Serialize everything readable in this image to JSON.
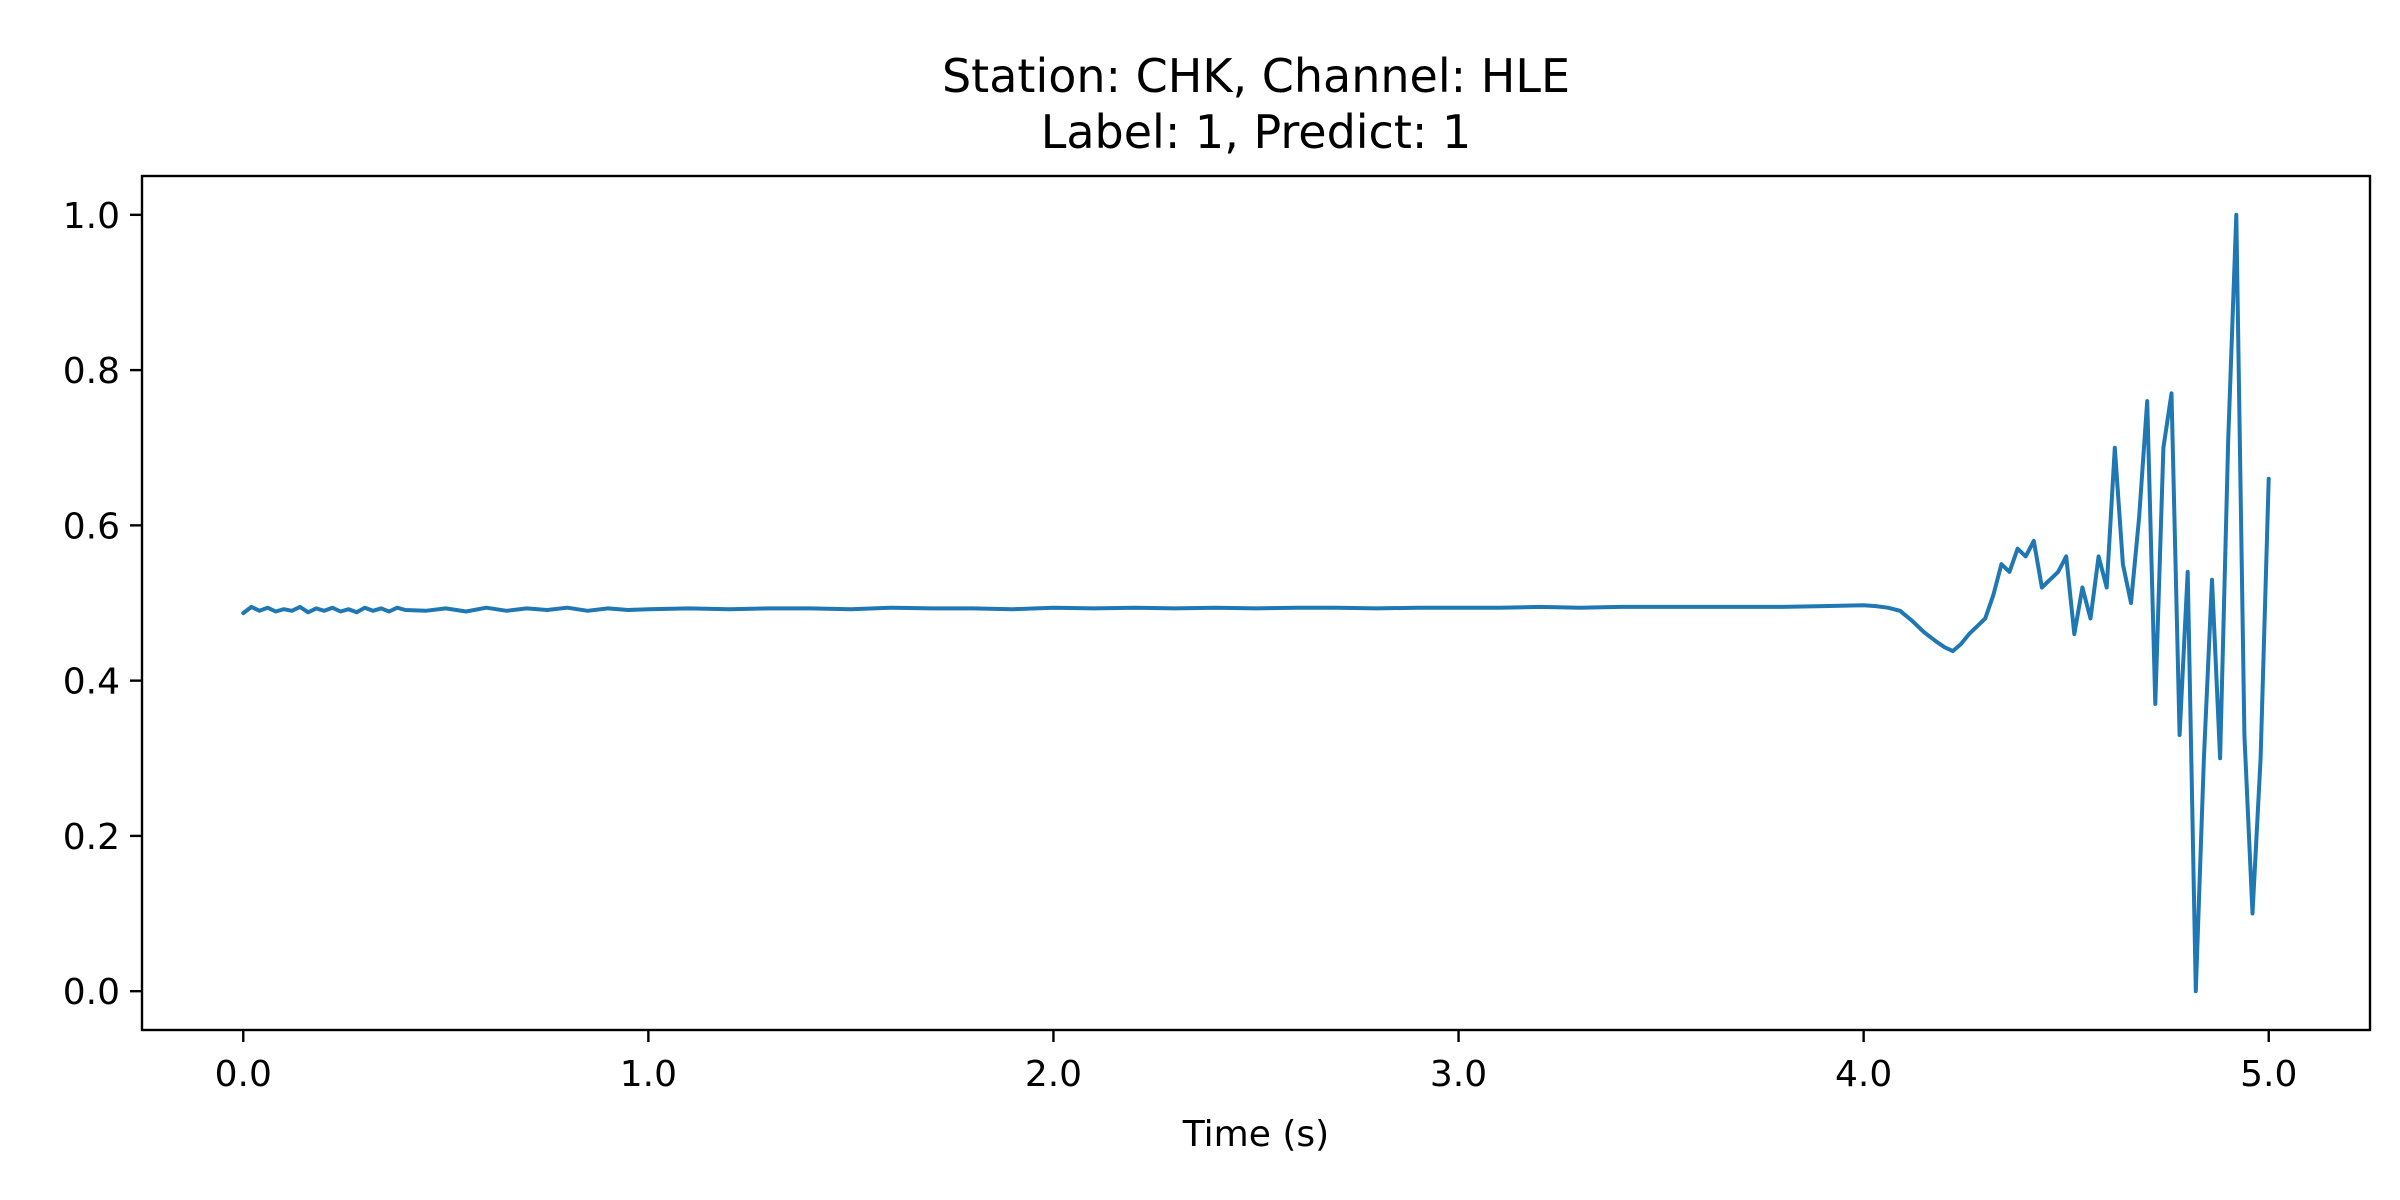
{
  "chart_data": {
    "type": "line",
    "title": "Station: CHK, Channel: HLE",
    "subtitle": "Label: 1, Predict: 1",
    "xlabel": "Time (s)",
    "ylabel": "",
    "xlim": [
      -0.25,
      5.25
    ],
    "ylim": [
      -0.05,
      1.05
    ],
    "xticks": [
      0.0,
      1.0,
      2.0,
      3.0,
      4.0,
      5.0
    ],
    "xtick_labels": [
      "0.0",
      "1.0",
      "2.0",
      "3.0",
      "4.0",
      "5.0"
    ],
    "yticks": [
      0.0,
      0.2,
      0.4,
      0.6,
      0.8,
      1.0
    ],
    "ytick_labels": [
      "0.0",
      "0.2",
      "0.4",
      "0.6",
      "0.8",
      "1.0"
    ],
    "grid": false,
    "legend": "none",
    "line_color": "#1f77b4",
    "series": [
      {
        "x": [
          0.0,
          0.02,
          0.04,
          0.06,
          0.08,
          0.1,
          0.12,
          0.14,
          0.16,
          0.18,
          0.2,
          0.22,
          0.24,
          0.26,
          0.28,
          0.3,
          0.32,
          0.34,
          0.36,
          0.38,
          0.4,
          0.45,
          0.5,
          0.55,
          0.6,
          0.65,
          0.7,
          0.75,
          0.8,
          0.85,
          0.9,
          0.95,
          1.0,
          1.1,
          1.2,
          1.3,
          1.4,
          1.5,
          1.6,
          1.7,
          1.8,
          1.9,
          2.0,
          2.1,
          2.2,
          2.3,
          2.4,
          2.5,
          2.6,
          2.7,
          2.8,
          2.9,
          3.0,
          3.1,
          3.2,
          3.3,
          3.4,
          3.5,
          3.6,
          3.7,
          3.8,
          3.9,
          4.0,
          4.03,
          4.06,
          4.09,
          4.12,
          4.15,
          4.18,
          4.2,
          4.22,
          4.24,
          4.26,
          4.28,
          4.3,
          4.32,
          4.34,
          4.36,
          4.38,
          4.4,
          4.42,
          4.44,
          4.46,
          4.48,
          4.5,
          4.52,
          4.54,
          4.56,
          4.58,
          4.6,
          4.62,
          4.64,
          4.66,
          4.68,
          4.7,
          4.72,
          4.74,
          4.76,
          4.78,
          4.8,
          4.82,
          4.84,
          4.86,
          4.88,
          4.9,
          4.92,
          4.94,
          4.96,
          4.98,
          5.0
        ],
        "y": [
          0.487,
          0.495,
          0.49,
          0.494,
          0.489,
          0.492,
          0.49,
          0.495,
          0.488,
          0.493,
          0.49,
          0.494,
          0.489,
          0.492,
          0.488,
          0.494,
          0.49,
          0.493,
          0.489,
          0.494,
          0.491,
          0.49,
          0.493,
          0.489,
          0.494,
          0.49,
          0.493,
          0.491,
          0.494,
          0.49,
          0.493,
          0.491,
          0.492,
          0.493,
          0.492,
          0.493,
          0.493,
          0.492,
          0.494,
          0.493,
          0.493,
          0.492,
          0.494,
          0.493,
          0.494,
          0.493,
          0.494,
          0.493,
          0.494,
          0.494,
          0.493,
          0.494,
          0.494,
          0.494,
          0.495,
          0.494,
          0.495,
          0.495,
          0.495,
          0.495,
          0.495,
          0.496,
          0.497,
          0.496,
          0.494,
          0.49,
          0.477,
          0.462,
          0.45,
          0.443,
          0.438,
          0.447,
          0.46,
          0.47,
          0.48,
          0.51,
          0.55,
          0.54,
          0.57,
          0.56,
          0.58,
          0.52,
          0.53,
          0.54,
          0.56,
          0.46,
          0.52,
          0.48,
          0.56,
          0.52,
          0.7,
          0.55,
          0.5,
          0.61,
          0.76,
          0.37,
          0.7,
          0.77,
          0.33,
          0.54,
          0.0,
          0.3,
          0.53,
          0.3,
          0.71,
          1.0,
          0.33,
          0.1,
          0.3,
          0.66
        ],
        "name": ""
      }
    ]
  }
}
